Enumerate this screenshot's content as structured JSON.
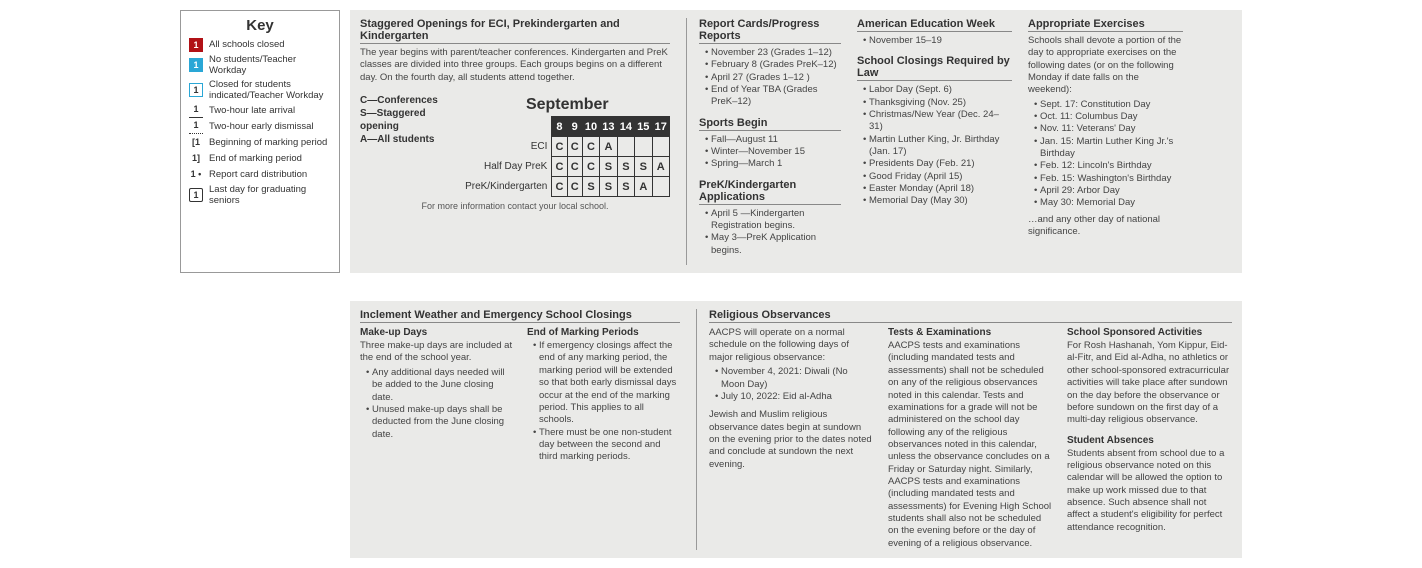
{
  "key": {
    "title": "Key",
    "items": [
      {
        "label": "All schools closed",
        "glyph": "1",
        "cls": "sq-red"
      },
      {
        "label": "No students/Teacher Workday",
        "glyph": "1",
        "cls": "sq-cyan"
      },
      {
        "label": "Closed for students indicated/Teacher Workday",
        "glyph": "1",
        "cls": "sq-cyan-outline"
      },
      {
        "label": "Two-hour late arrival",
        "glyph": "1",
        "cls": "sq-underline"
      },
      {
        "label": "Two-hour early dismissal",
        "glyph": "1",
        "cls": "sq-underline-dot"
      },
      {
        "label": "Beginning of marking period",
        "glyph": "[1",
        "cls": ""
      },
      {
        "label": "End of marking period",
        "glyph": "1]",
        "cls": ""
      },
      {
        "label": "Report card distribution",
        "glyph": "1 •",
        "cls": ""
      },
      {
        "label": "Last day for graduating seniors",
        "glyph": "1",
        "cls": "sq-outline"
      }
    ]
  },
  "staggered": {
    "title": "Staggered Openings for ECI, Prekindergarten and Kindergarten",
    "body": "The year begins with parent/teacher conferences. Kindergarten and PreK classes are divided into three groups. Each groups begins on a different day. On the fourth day, all students attend together.",
    "legend": [
      "C—Conferences",
      "S—Staggered opening",
      "A—All students"
    ],
    "month": "September",
    "days": [
      "8",
      "9",
      "10",
      "13",
      "14",
      "15",
      "17"
    ],
    "rows": [
      {
        "label": "ECI",
        "cells": [
          "C",
          "C",
          "C",
          "A",
          "",
          "",
          ""
        ]
      },
      {
        "label": "Half Day PreK",
        "cells": [
          "C",
          "C",
          "C",
          "S",
          "S",
          "S",
          "A"
        ]
      },
      {
        "label": "PreK/Kindergarten",
        "cells": [
          "C",
          "C",
          "S",
          "S",
          "S",
          "A",
          ""
        ]
      }
    ],
    "footer": "For more information contact your local school."
  },
  "reportCards": {
    "title": "Report Cards/Progress Reports",
    "items": [
      "November 23 (Grades 1–12)",
      "February 8 (Grades PreK–12)",
      "April 27 (Grades 1–12 )",
      "End of Year TBA (Grades PreK–12)"
    ]
  },
  "sports": {
    "title": "Sports Begin",
    "items": [
      "Fall—August 11",
      "Winter—November 15",
      "Spring—March 1"
    ]
  },
  "prekApps": {
    "title": "PreK/Kindergarten Applications",
    "items": [
      "April 5 —Kindergarten Registration begins.",
      "May 3—PreK Application begins."
    ]
  },
  "aew": {
    "title": "American Education Week",
    "items": [
      "November 15–19"
    ]
  },
  "closingsLaw": {
    "title": "School Closings Required by Law",
    "items": [
      "Labor Day (Sept. 6)",
      "Thanksgiving (Nov. 25)",
      "Christmas/New Year (Dec. 24–31)",
      "Martin Luther King, Jr. Birthday (Jan. 17)",
      "Presidents Day (Feb. 21)",
      "Good Friday (April 15)",
      "Easter Monday (April 18)",
      "Memorial Day (May 30)"
    ]
  },
  "exercises": {
    "title": "Appropriate Exercises",
    "intro": "Schools shall devote a portion of the day to appropriate exercises on the following dates (or on the following Monday if date falls on the weekend):",
    "items": [
      "Sept. 17: Constitution Day",
      "Oct. 11: Columbus Day",
      "Nov. 11: Veterans' Day",
      "Jan. 15: Martin Luther King Jr.'s Birthday",
      "Feb. 12: Lincoln's Birthday",
      "Feb. 15: Washington's Birthday",
      "April 29: Arbor Day",
      "May 30: Memorial Day"
    ],
    "outro": "…and any other day of national significance."
  },
  "inclement": {
    "title": "Inclement Weather and Emergency School Closings",
    "makeup": {
      "title": "Make-up Days",
      "intro": "Three make-up days are included at the end of the school year.",
      "items": [
        "Any additional days needed will be added to the June closing date.",
        "Unused make-up days shall be deducted from the June closing date."
      ]
    },
    "eomp": {
      "title": "End of Marking Periods",
      "items": [
        "If emergency closings affect the end of any marking period, the marking period will be extended so that both early dismissal days occur at the end of the marking period. This applies to all schools.",
        "There must be one non-student day between the second and third marking periods."
      ]
    }
  },
  "religious": {
    "title": "Religious Observances",
    "intro": "AACPS will operate on a normal schedule on the following days of major religious observance:",
    "items": [
      "November 4, 2021: Diwali (No Moon Day)",
      "July 10, 2022: Eid al-Adha"
    ],
    "note": "Jewish and Muslim religious observance dates begin at sundown on the evening prior to the dates noted and conclude at sundown the next evening.",
    "tests": {
      "title": "Tests & Examinations",
      "body": "AACPS tests and examinations (including mandated tests and assessments) shall not be scheduled on any of the religious observances noted in this calendar. Tests and examinations for a grade will not be administered on the school day following any of the religious observances noted in this calendar, unless the observance concludes on a Friday or Saturday night. Similarly, AACPS tests and examinations (including mandated tests and assessments) for Evening High School students shall also not be scheduled on the evening before or the day of evening of a religious observance."
    },
    "sponsored": {
      "title": "School Sponsored Activities",
      "body": "For Rosh Hashanah, Yom Kippur, Eid-al-Fitr, and Eid al-Adha, no athletics or other school-sponsored extracurricular activities will take place after sundown on the day before the observance or before sundown on the first day of a multi-day religious observance."
    },
    "absences": {
      "title": "Student Absences",
      "body": "Students absent from school due to a religious observance noted on this calendar will be allowed the option to make up work missed due to that absence. Such absence shall not affect a student's eligibility for perfect attendance recognition."
    }
  }
}
